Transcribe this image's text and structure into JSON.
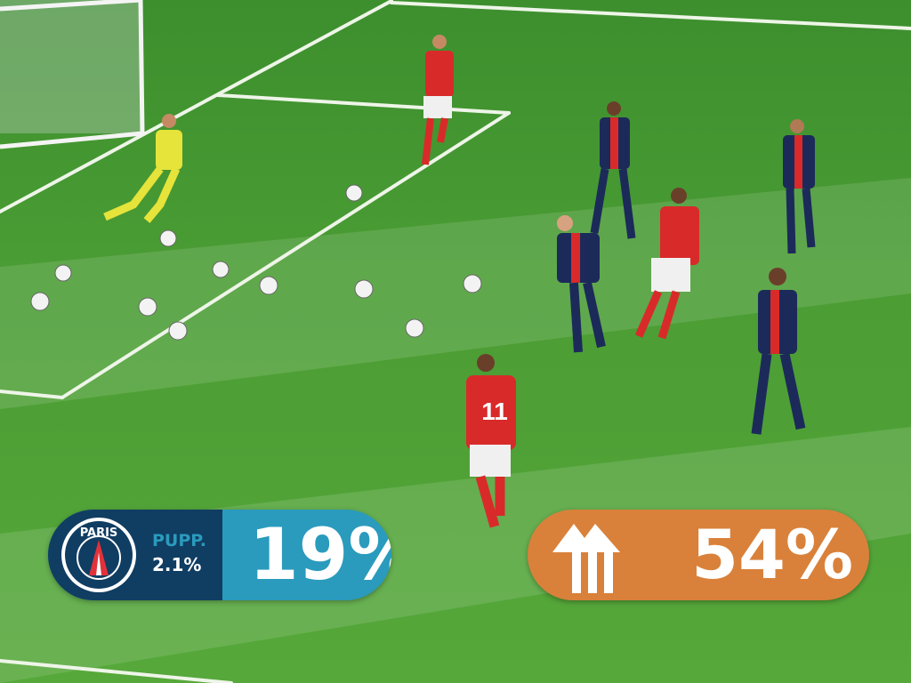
{
  "overlays": {
    "left": {
      "logo_text": "PARIS",
      "label": "PUPP.",
      "sub_value": "2.1%",
      "value": "19%",
      "colors": {
        "dark": "#103d62",
        "accent": "#2a9bbd"
      },
      "icon": "psg-crest-icon"
    },
    "right": {
      "value": "54%",
      "colors": {
        "accent": "#d9813a"
      },
      "icon": "house-logo-icon"
    }
  },
  "scene": {
    "players": [
      {
        "team": "goalkeeper",
        "color": "#e6e33a"
      },
      {
        "team": "red",
        "color": "#d92a2a"
      },
      {
        "team": "navy",
        "color": "#1c2a5a"
      },
      {
        "number": "11"
      }
    ]
  }
}
